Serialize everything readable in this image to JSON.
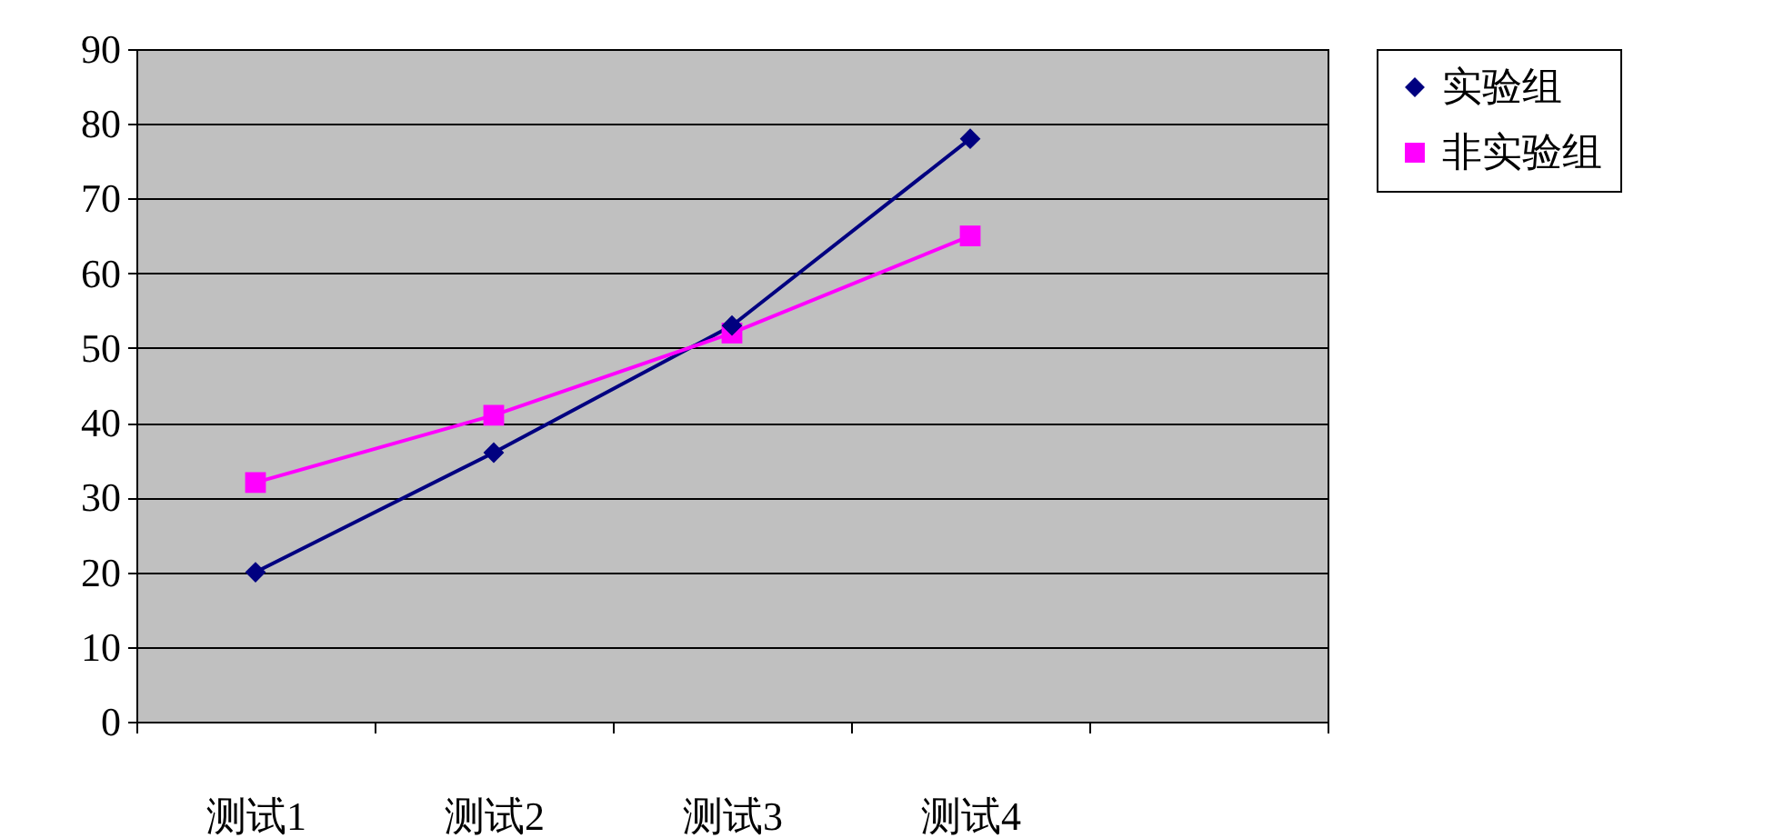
{
  "chart_data": {
    "type": "line",
    "categories": [
      "测试1",
      "测试2",
      "测试3",
      "测试4",
      null
    ],
    "series": [
      {
        "name": "实验组",
        "color": "#000080",
        "marker": "diamond",
        "values": [
          20,
          36,
          53,
          78,
          null
        ]
      },
      {
        "name": "非实验组",
        "color": "#ff00ff",
        "marker": "square",
        "values": [
          32,
          41,
          52,
          65,
          null
        ]
      }
    ],
    "ylim": [
      0,
      90
    ],
    "yticks": [
      0,
      10,
      20,
      30,
      40,
      50,
      60,
      70,
      80,
      90
    ],
    "grid": "y",
    "legend": "right"
  }
}
